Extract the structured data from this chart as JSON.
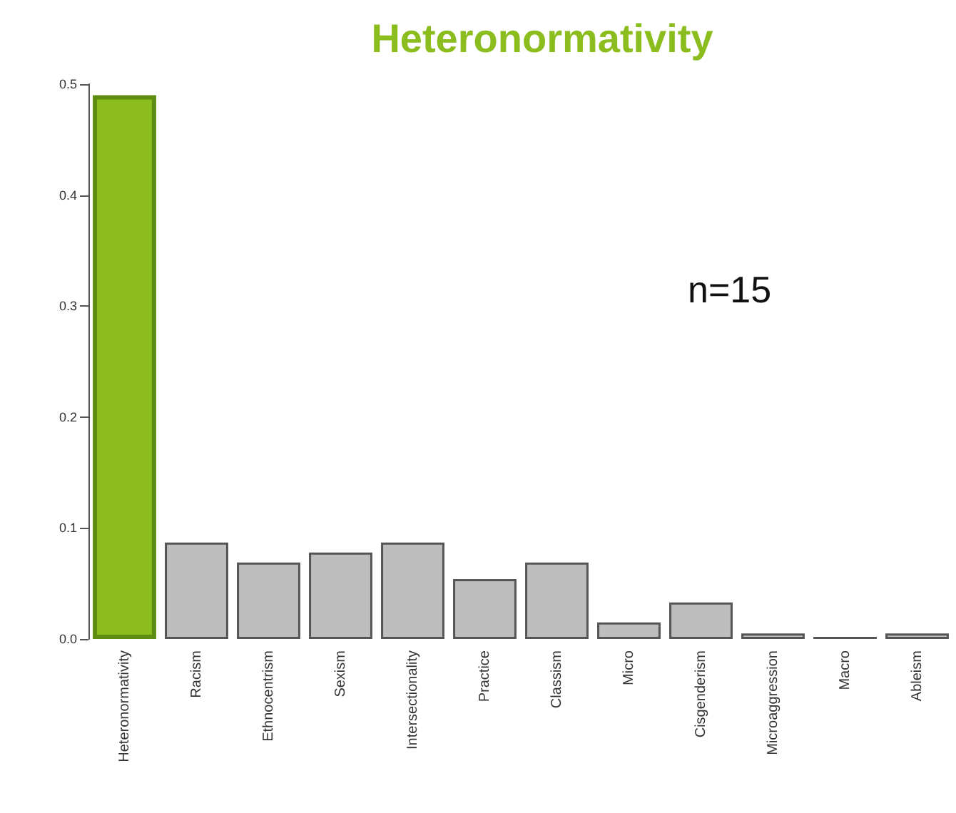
{
  "chart_data": {
    "type": "bar",
    "title": "Heteronormativity",
    "categories": [
      "Heteronormativity",
      "Racism",
      "Ethnocentrism",
      "Sexism",
      "Intersectionality",
      "Practice",
      "Classism",
      "Micro",
      "Cisgenderism",
      "Microaggression",
      "Macro",
      "Ableism"
    ],
    "values": [
      0.49,
      0.087,
      0.069,
      0.078,
      0.087,
      0.054,
      0.069,
      0.015,
      0.033,
      0.005,
      0.002,
      0.005
    ],
    "colors": [
      "#8cbd1f",
      "#bebebe",
      "#bebebe",
      "#bebebe",
      "#bebebe",
      "#bebebe",
      "#bebebe",
      "#bebebe",
      "#bebebe",
      "#bebebe",
      "#bebebe",
      "#bebebe"
    ],
    "ylim": [
      0,
      0.5
    ],
    "yticks": [
      {
        "value": 0,
        "label": "0.0"
      },
      0.1,
      0.2,
      0.3,
      0.4,
      0.5
    ],
    "annotations": [
      "n=15"
    ],
    "grid": false
  }
}
